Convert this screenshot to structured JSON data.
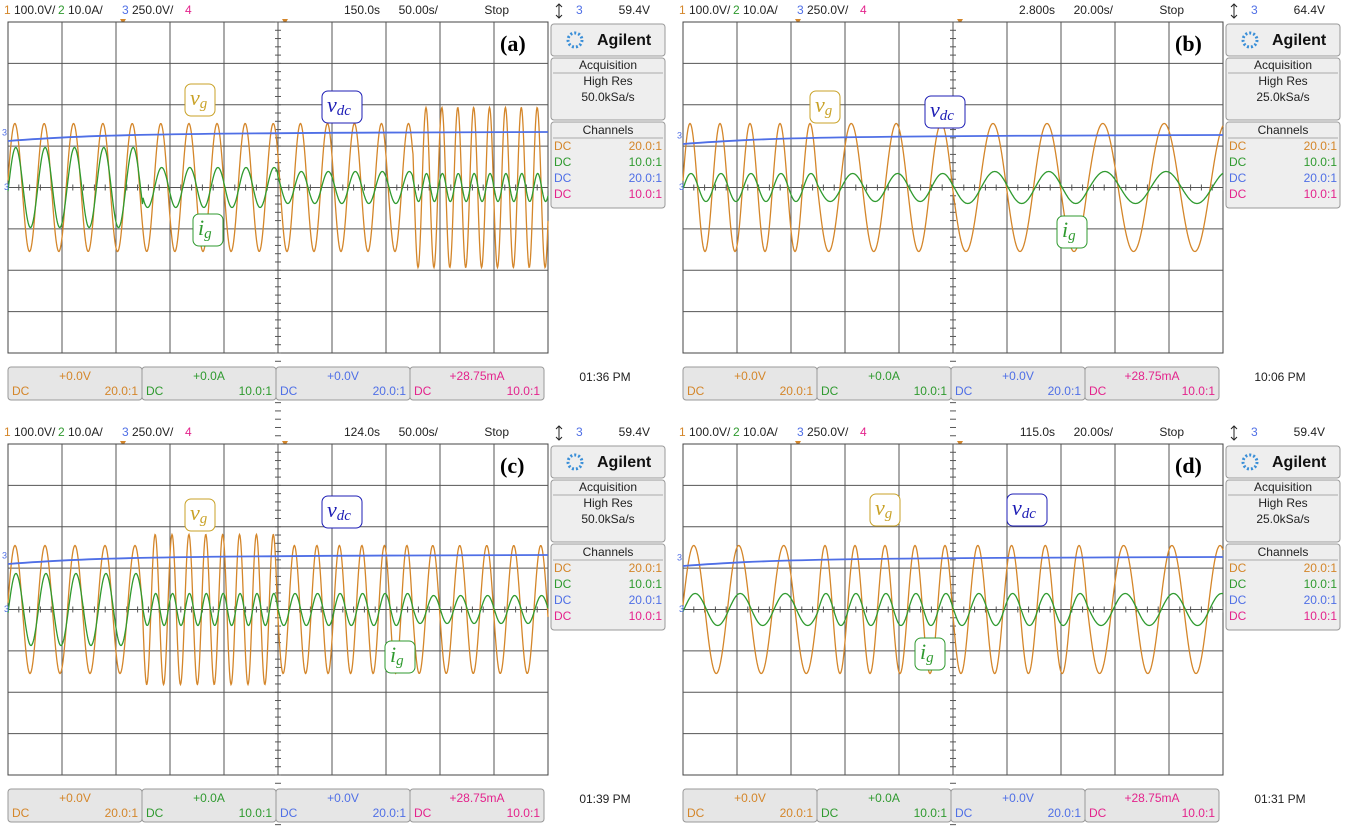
{
  "panels": [
    {
      "header": {
        "ch1": "1",
        "ch1_scale": "100.0V/",
        "ch2": "2",
        "ch2_scale": "10.0A/",
        "ch3": "3",
        "ch3_scale": "250.0V/",
        "ch4": "4",
        "delay": "150.0s",
        "timebase": "50.00s/",
        "run": "Stop",
        "trig_ch": "3",
        "trig_level": "59.4V"
      },
      "label": "(a)",
      "annotations": {
        "vg": {
          "main": "v",
          "sub": "g"
        },
        "vdc": {
          "main": "v",
          "sub": "dc"
        },
        "ig": {
          "main": "i",
          "sub": "g"
        }
      },
      "sidebar": {
        "brand": "Agilent",
        "acquisition": "Acquisition",
        "mode": "High Res",
        "rate": "50.0kSa/s",
        "channels": "Channels",
        "rows": [
          [
            "DC",
            "20.0:1"
          ],
          [
            "DC",
            "10.0:1"
          ],
          [
            "DC",
            "20.0:1"
          ],
          [
            "DC",
            "10.0:1"
          ]
        ]
      },
      "footer": [
        {
          "offset": "+0.0V",
          "coupling": "DC",
          "probe": "20.0:1"
        },
        {
          "offset": "+0.0A",
          "coupling": "DC",
          "probe": "10.0:1"
        },
        {
          "offset": "+0.0V",
          "coupling": "DC",
          "probe": "20.0:1"
        },
        {
          "offset": "+28.75mA",
          "coupling": "DC",
          "probe": "10.0:1"
        }
      ],
      "time": "01:36 PM"
    },
    {
      "header": {
        "ch1": "1",
        "ch1_scale": "100.0V/",
        "ch2": "2",
        "ch2_scale": "10.0A/",
        "ch3": "3",
        "ch3_scale": "250.0V/",
        "ch4": "4",
        "delay": "2.800s",
        "timebase": "20.00s/",
        "run": "Stop",
        "trig_ch": "3",
        "trig_level": "64.4V"
      },
      "label": "(b)",
      "annotations": {
        "vg": {
          "main": "v",
          "sub": "g"
        },
        "vdc": {
          "main": "v",
          "sub": "dc"
        },
        "ig": {
          "main": "i",
          "sub": "g"
        }
      },
      "sidebar": {
        "brand": "Agilent",
        "acquisition": "Acquisition",
        "mode": "High Res",
        "rate": "25.0kSa/s",
        "channels": "Channels",
        "rows": [
          [
            "DC",
            "20.0:1"
          ],
          [
            "DC",
            "10.0:1"
          ],
          [
            "DC",
            "20.0:1"
          ],
          [
            "DC",
            "10.0:1"
          ]
        ]
      },
      "footer": [
        {
          "offset": "+0.0V",
          "coupling": "DC",
          "probe": "20.0:1"
        },
        {
          "offset": "+0.0A",
          "coupling": "DC",
          "probe": "10.0:1"
        },
        {
          "offset": "+0.0V",
          "coupling": "DC",
          "probe": "20.0:1"
        },
        {
          "offset": "+28.75mA",
          "coupling": "DC",
          "probe": "10.0:1"
        }
      ],
      "time": "10:06 PM"
    },
    {
      "header": {
        "ch1": "1",
        "ch1_scale": "100.0V/",
        "ch2": "2",
        "ch2_scale": "10.0A/",
        "ch3": "3",
        "ch3_scale": "250.0V/",
        "ch4": "4",
        "delay": "124.0s",
        "timebase": "50.00s/",
        "run": "Stop",
        "trig_ch": "3",
        "trig_level": "59.4V"
      },
      "label": "(c)",
      "annotations": {
        "vg": {
          "main": "v",
          "sub": "g"
        },
        "vdc": {
          "main": "v",
          "sub": "dc"
        },
        "ig": {
          "main": "i",
          "sub": "g"
        }
      },
      "sidebar": {
        "brand": "Agilent",
        "acquisition": "Acquisition",
        "mode": "High Res",
        "rate": "50.0kSa/s",
        "channels": "Channels",
        "rows": [
          [
            "DC",
            "20.0:1"
          ],
          [
            "DC",
            "10.0:1"
          ],
          [
            "DC",
            "20.0:1"
          ],
          [
            "DC",
            "10.0:1"
          ]
        ]
      },
      "footer": [
        {
          "offset": "+0.0V",
          "coupling": "DC",
          "probe": "20.0:1"
        },
        {
          "offset": "+0.0A",
          "coupling": "DC",
          "probe": "10.0:1"
        },
        {
          "offset": "+0.0V",
          "coupling": "DC",
          "probe": "20.0:1"
        },
        {
          "offset": "+28.75mA",
          "coupling": "DC",
          "probe": "10.0:1"
        }
      ],
      "time": "01:39 PM"
    },
    {
      "header": {
        "ch1": "1",
        "ch1_scale": "100.0V/",
        "ch2": "2",
        "ch2_scale": "10.0A/",
        "ch3": "3",
        "ch3_scale": "250.0V/",
        "ch4": "4",
        "delay": "115.0s",
        "timebase": "20.00s/",
        "run": "Stop",
        "trig_ch": "3",
        "trig_level": "59.4V"
      },
      "label": "(d)",
      "annotations": {
        "vg": {
          "main": "v",
          "sub": "g"
        },
        "vdc": {
          "main": "v",
          "sub": "dc"
        },
        "ig": {
          "main": "i",
          "sub": "g"
        }
      },
      "sidebar": {
        "brand": "Agilent",
        "acquisition": "Acquisition",
        "mode": "High Res",
        "rate": "25.0kSa/s",
        "channels": "Channels",
        "rows": [
          [
            "DC",
            "20.0:1"
          ],
          [
            "DC",
            "10.0:1"
          ],
          [
            "DC",
            "20.0:1"
          ],
          [
            "DC",
            "10.0:1"
          ]
        ]
      },
      "footer": [
        {
          "offset": "+0.0V",
          "coupling": "DC",
          "probe": "20.0:1"
        },
        {
          "offset": "+0.0A",
          "coupling": "DC",
          "probe": "10.0:1"
        },
        {
          "offset": "+0.0V",
          "coupling": "DC",
          "probe": "20.0:1"
        },
        {
          "offset": "+28.75mA",
          "coupling": "DC",
          "probe": "10.0:1"
        }
      ],
      "time": "01:31 PM"
    }
  ]
}
